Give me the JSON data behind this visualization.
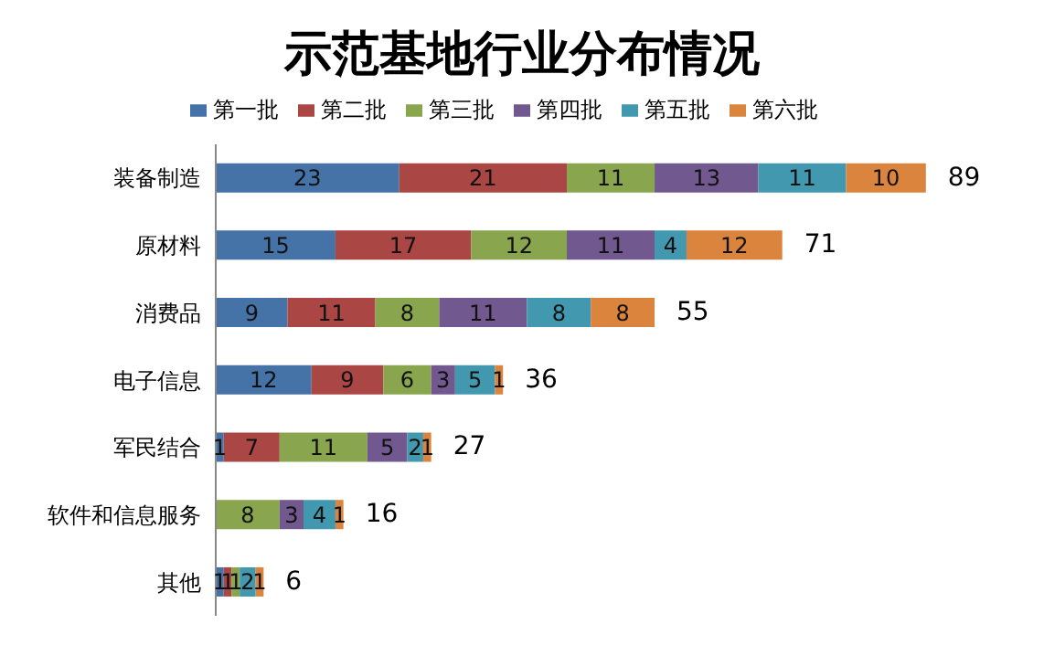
{
  "chart_data": {
    "type": "bar",
    "orientation": "horizontal",
    "stacked": true,
    "title": "示范基地行业分布情况",
    "categories": [
      "装备制造",
      "原材料",
      "消费品",
      "电子信息",
      "军民结合",
      "软件和信息服务",
      "其他"
    ],
    "series": [
      {
        "name": "第一批",
        "color": "#4572a7",
        "values": [
          23,
          15,
          9,
          12,
          1,
          null,
          1
        ]
      },
      {
        "name": "第二批",
        "color": "#aa4643",
        "values": [
          21,
          17,
          11,
          9,
          7,
          null,
          1
        ]
      },
      {
        "name": "第三批",
        "color": "#89a54e",
        "values": [
          11,
          12,
          8,
          6,
          11,
          8,
          1
        ]
      },
      {
        "name": "第四批",
        "color": "#71588f",
        "values": [
          13,
          11,
          11,
          3,
          5,
          3,
          null
        ]
      },
      {
        "name": "第五批",
        "color": "#4198af",
        "values": [
          11,
          4,
          8,
          5,
          2,
          4,
          2
        ]
      },
      {
        "name": "第六批",
        "color": "#db843d",
        "values": [
          10,
          12,
          8,
          1,
          1,
          1,
          1
        ]
      }
    ],
    "totals": [
      "89",
      "71",
      "55",
      "36",
      "27",
      "16",
      "6"
    ],
    "data_labels": true,
    "legend": "top",
    "tick_labels": "y"
  }
}
